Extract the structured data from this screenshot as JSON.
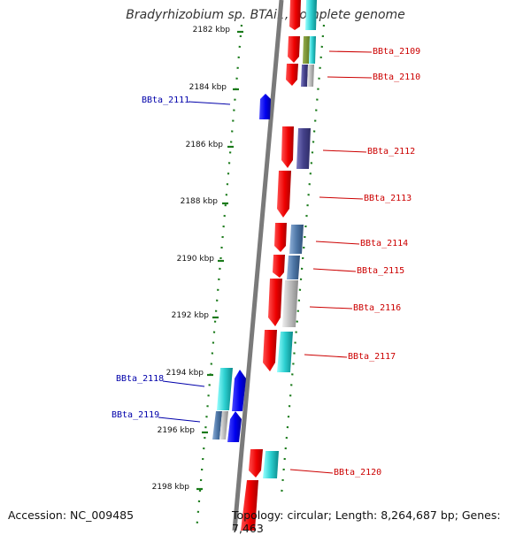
{
  "title": "Bradyrhizobium sp. BTAi1, complete genome",
  "footer": {
    "accession": "Accession: NC_009485",
    "topology": "Topology: circular; Length: 8,264,687 bp; Genes: 7,463"
  },
  "ticks": [
    "2182 kbp",
    "2184 kbp",
    "2186 kbp",
    "2188 kbp",
    "2190 kbp",
    "2192 kbp",
    "2194 kbp",
    "2196 kbp",
    "2198 kbp"
  ],
  "genes": [
    "BBta_2109",
    "BBta_2110",
    "BBta_2111",
    "BBta_2112",
    "BBta_2113",
    "BBta_2114",
    "BBta_2115",
    "BBta_2116",
    "BBta_2117",
    "BBta_2118",
    "BBta_2119",
    "BBta_2120"
  ],
  "colors": {
    "backbone": "#7a7a7a",
    "tick": "#1a7a1a",
    "label_right": "#cc0000",
    "label_left": "#0000aa"
  }
}
